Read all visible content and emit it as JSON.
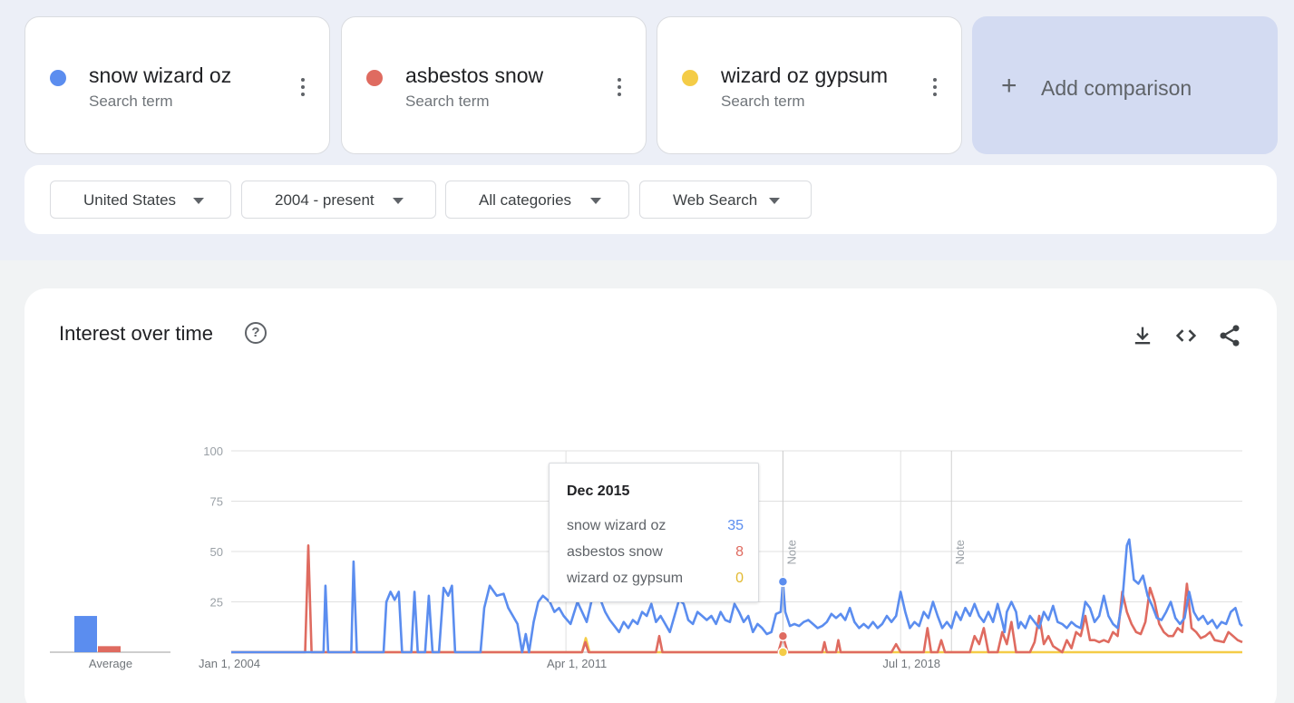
{
  "terms": [
    {
      "name": "snow wizard oz",
      "sub": "Search term",
      "color": "#5b8def"
    },
    {
      "name": "asbestos snow",
      "sub": "Search term",
      "color": "#df6b60"
    },
    {
      "name": "wizard oz gypsum",
      "sub": "Search term",
      "color": "#f4cc47"
    }
  ],
  "add_comparison": {
    "plus": "+",
    "label": "Add comparison"
  },
  "filters": {
    "region": "United States",
    "time": "2004 - present",
    "category": "All categories",
    "property": "Web Search"
  },
  "chart": {
    "title": "Interest over time",
    "help": "?"
  },
  "tooltip": {
    "date": "Dec 2015",
    "rows": [
      {
        "name": "snow wizard oz",
        "value": "35"
      },
      {
        "name": "asbestos snow",
        "value": "8"
      },
      {
        "name": "wizard oz gypsum",
        "value": "0"
      }
    ]
  },
  "chart_data": {
    "type": "line",
    "title": "Interest over time",
    "y_ticks": [
      "100",
      "75",
      "50",
      "25"
    ],
    "ylim": [
      0,
      100
    ],
    "x_tick_labels": [
      "Jan 1, 2004",
      "Apr 1, 2011",
      "Jul 1, 2018"
    ],
    "x_tick_positions": [
      2004.0,
      2011.25,
      2018.5
    ],
    "xlim": [
      2004.0,
      2025.9
    ],
    "annotations": [
      {
        "label": "Note",
        "x": 2015.95
      },
      {
        "label": "Note",
        "x": 2019.6
      }
    ],
    "grid": true,
    "average_label": "Average",
    "average": [
      {
        "series": "snow wizard oz",
        "value": 18
      },
      {
        "series": "asbestos snow",
        "value": 3
      }
    ],
    "series": [
      {
        "name": "snow wizard oz",
        "color": "#5b8def",
        "points": [
          [
            2004.0,
            0
          ],
          [
            2006.0,
            0
          ],
          [
            2006.04,
            33
          ],
          [
            2006.1,
            0
          ],
          [
            2006.6,
            0
          ],
          [
            2006.65,
            45
          ],
          [
            2006.72,
            0
          ],
          [
            2007.3,
            0
          ],
          [
            2007.36,
            25
          ],
          [
            2007.45,
            30
          ],
          [
            2007.54,
            26
          ],
          [
            2007.63,
            30
          ],
          [
            2007.7,
            0
          ],
          [
            2007.9,
            0
          ],
          [
            2007.97,
            30
          ],
          [
            2008.04,
            0
          ],
          [
            2008.2,
            0
          ],
          [
            2008.28,
            28
          ],
          [
            2008.36,
            0
          ],
          [
            2008.5,
            0
          ],
          [
            2008.6,
            32
          ],
          [
            2008.7,
            28
          ],
          [
            2008.78,
            33
          ],
          [
            2008.85,
            0
          ],
          [
            2009.4,
            0
          ],
          [
            2009.48,
            22
          ],
          [
            2009.6,
            33
          ],
          [
            2009.75,
            28
          ],
          [
            2009.9,
            29
          ],
          [
            2010.0,
            22
          ],
          [
            2010.1,
            18
          ],
          [
            2010.2,
            14
          ],
          [
            2010.3,
            0
          ],
          [
            2010.38,
            9
          ],
          [
            2010.45,
            0
          ],
          [
            2010.55,
            15
          ],
          [
            2010.65,
            25
          ],
          [
            2010.75,
            28
          ],
          [
            2010.9,
            25
          ],
          [
            2011.0,
            20
          ],
          [
            2011.1,
            22
          ],
          [
            2011.2,
            18
          ],
          [
            2011.35,
            14
          ],
          [
            2011.5,
            25
          ],
          [
            2011.6,
            20
          ],
          [
            2011.7,
            15
          ],
          [
            2011.8,
            25
          ],
          [
            2011.9,
            34
          ],
          [
            2012.0,
            26
          ],
          [
            2012.1,
            20
          ],
          [
            2012.2,
            16
          ],
          [
            2012.3,
            13
          ],
          [
            2012.4,
            10
          ],
          [
            2012.5,
            15
          ],
          [
            2012.6,
            12
          ],
          [
            2012.7,
            16
          ],
          [
            2012.8,
            14
          ],
          [
            2012.9,
            20
          ],
          [
            2013.0,
            18
          ],
          [
            2013.1,
            24
          ],
          [
            2013.2,
            15
          ],
          [
            2013.3,
            18
          ],
          [
            2013.4,
            14
          ],
          [
            2013.5,
            10
          ],
          [
            2013.6,
            18
          ],
          [
            2013.7,
            26
          ],
          [
            2013.8,
            24
          ],
          [
            2013.9,
            16
          ],
          [
            2014.0,
            14
          ],
          [
            2014.1,
            20
          ],
          [
            2014.2,
            18
          ],
          [
            2014.3,
            16
          ],
          [
            2014.4,
            18
          ],
          [
            2014.5,
            14
          ],
          [
            2014.6,
            20
          ],
          [
            2014.7,
            16
          ],
          [
            2014.8,
            15
          ],
          [
            2014.9,
            24
          ],
          [
            2015.0,
            20
          ],
          [
            2015.1,
            15
          ],
          [
            2015.2,
            18
          ],
          [
            2015.3,
            10
          ],
          [
            2015.4,
            14
          ],
          [
            2015.5,
            12
          ],
          [
            2015.6,
            9
          ],
          [
            2015.7,
            10
          ],
          [
            2015.8,
            19
          ],
          [
            2015.9,
            20
          ],
          [
            2015.95,
            35
          ],
          [
            2016.0,
            20
          ],
          [
            2016.1,
            13
          ],
          [
            2016.2,
            14
          ],
          [
            2016.3,
            13
          ],
          [
            2016.4,
            15
          ],
          [
            2016.5,
            16
          ],
          [
            2016.6,
            14
          ],
          [
            2016.7,
            12
          ],
          [
            2016.8,
            13
          ],
          [
            2016.9,
            15
          ],
          [
            2017.0,
            19
          ],
          [
            2017.1,
            17
          ],
          [
            2017.2,
            19
          ],
          [
            2017.3,
            16
          ],
          [
            2017.4,
            22
          ],
          [
            2017.5,
            15
          ],
          [
            2017.6,
            12
          ],
          [
            2017.7,
            14
          ],
          [
            2017.8,
            12
          ],
          [
            2017.9,
            15
          ],
          [
            2018.0,
            12
          ],
          [
            2018.1,
            14
          ],
          [
            2018.2,
            18
          ],
          [
            2018.3,
            15
          ],
          [
            2018.4,
            18
          ],
          [
            2018.5,
            30
          ],
          [
            2018.6,
            20
          ],
          [
            2018.7,
            12
          ],
          [
            2018.8,
            15
          ],
          [
            2018.9,
            13
          ],
          [
            2019.0,
            20
          ],
          [
            2019.1,
            17
          ],
          [
            2019.2,
            25
          ],
          [
            2019.3,
            18
          ],
          [
            2019.4,
            12
          ],
          [
            2019.5,
            15
          ],
          [
            2019.6,
            12
          ],
          [
            2019.7,
            20
          ],
          [
            2019.8,
            16
          ],
          [
            2019.9,
            22
          ],
          [
            2020.0,
            18
          ],
          [
            2020.1,
            24
          ],
          [
            2020.2,
            18
          ],
          [
            2020.3,
            15
          ],
          [
            2020.4,
            20
          ],
          [
            2020.5,
            15
          ],
          [
            2020.6,
            24
          ],
          [
            2020.7,
            15
          ],
          [
            2020.75,
            10
          ],
          [
            2020.8,
            20
          ],
          [
            2020.9,
            25
          ],
          [
            2021.0,
            20
          ],
          [
            2021.05,
            12
          ],
          [
            2021.1,
            15
          ],
          [
            2021.2,
            12
          ],
          [
            2021.3,
            18
          ],
          [
            2021.4,
            15
          ],
          [
            2021.5,
            12
          ],
          [
            2021.6,
            20
          ],
          [
            2021.7,
            16
          ],
          [
            2021.8,
            23
          ],
          [
            2021.9,
            15
          ],
          [
            2022.0,
            14
          ],
          [
            2022.1,
            12
          ],
          [
            2022.2,
            15
          ],
          [
            2022.3,
            13
          ],
          [
            2022.4,
            12
          ],
          [
            2022.5,
            25
          ],
          [
            2022.6,
            22
          ],
          [
            2022.7,
            15
          ],
          [
            2022.8,
            18
          ],
          [
            2022.9,
            28
          ],
          [
            2023.0,
            18
          ],
          [
            2023.1,
            14
          ],
          [
            2023.2,
            12
          ],
          [
            2023.3,
            25
          ],
          [
            2023.4,
            53
          ],
          [
            2023.45,
            56
          ],
          [
            2023.55,
            36
          ],
          [
            2023.65,
            34
          ],
          [
            2023.75,
            38
          ],
          [
            2023.85,
            28
          ],
          [
            2023.95,
            23
          ],
          [
            2024.05,
            17
          ],
          [
            2024.15,
            16
          ],
          [
            2024.25,
            20
          ],
          [
            2024.35,
            25
          ],
          [
            2024.45,
            17
          ],
          [
            2024.55,
            14
          ],
          [
            2024.65,
            17
          ],
          [
            2024.75,
            30
          ],
          [
            2024.85,
            20
          ],
          [
            2024.95,
            16
          ],
          [
            2025.05,
            18
          ],
          [
            2025.15,
            14
          ],
          [
            2025.25,
            16
          ],
          [
            2025.35,
            12
          ],
          [
            2025.45,
            15
          ],
          [
            2025.55,
            14
          ],
          [
            2025.65,
            20
          ],
          [
            2025.75,
            22
          ],
          [
            2025.85,
            14
          ],
          [
            2025.9,
            13
          ]
        ]
      },
      {
        "name": "asbestos snow",
        "color": "#df6b60",
        "points": [
          [
            2004.0,
            0
          ],
          [
            2005.6,
            0
          ],
          [
            2005.67,
            53
          ],
          [
            2005.74,
            0
          ],
          [
            2011.6,
            0
          ],
          [
            2011.67,
            5
          ],
          [
            2011.74,
            0
          ],
          [
            2013.2,
            0
          ],
          [
            2013.27,
            8
          ],
          [
            2013.34,
            0
          ],
          [
            2015.85,
            0
          ],
          [
            2015.95,
            8
          ],
          [
            2016.05,
            0
          ],
          [
            2016.8,
            0
          ],
          [
            2016.85,
            5
          ],
          [
            2016.9,
            0
          ],
          [
            2017.1,
            0
          ],
          [
            2017.15,
            6
          ],
          [
            2017.2,
            0
          ],
          [
            2018.3,
            0
          ],
          [
            2018.4,
            4
          ],
          [
            2018.5,
            0
          ],
          [
            2019.0,
            0
          ],
          [
            2019.08,
            12
          ],
          [
            2019.16,
            0
          ],
          [
            2019.3,
            0
          ],
          [
            2019.38,
            6
          ],
          [
            2019.46,
            0
          ],
          [
            2020.0,
            0
          ],
          [
            2020.1,
            8
          ],
          [
            2020.2,
            4
          ],
          [
            2020.3,
            12
          ],
          [
            2020.4,
            0
          ],
          [
            2020.6,
            0
          ],
          [
            2020.7,
            10
          ],
          [
            2020.8,
            4
          ],
          [
            2020.9,
            15
          ],
          [
            2021.0,
            0
          ],
          [
            2021.3,
            0
          ],
          [
            2021.4,
            5
          ],
          [
            2021.5,
            18
          ],
          [
            2021.6,
            4
          ],
          [
            2021.7,
            8
          ],
          [
            2021.8,
            3
          ],
          [
            2022.0,
            0
          ],
          [
            2022.1,
            6
          ],
          [
            2022.2,
            2
          ],
          [
            2022.3,
            10
          ],
          [
            2022.4,
            8
          ],
          [
            2022.5,
            18
          ],
          [
            2022.6,
            6
          ],
          [
            2022.7,
            6
          ],
          [
            2022.8,
            5
          ],
          [
            2022.9,
            6
          ],
          [
            2023.0,
            5
          ],
          [
            2023.1,
            10
          ],
          [
            2023.2,
            8
          ],
          [
            2023.3,
            30
          ],
          [
            2023.4,
            20
          ],
          [
            2023.5,
            14
          ],
          [
            2023.6,
            10
          ],
          [
            2023.7,
            9
          ],
          [
            2023.8,
            15
          ],
          [
            2023.9,
            32
          ],
          [
            2024.0,
            25
          ],
          [
            2024.1,
            14
          ],
          [
            2024.2,
            10
          ],
          [
            2024.3,
            8
          ],
          [
            2024.4,
            8
          ],
          [
            2024.5,
            12
          ],
          [
            2024.6,
            10
          ],
          [
            2024.7,
            34
          ],
          [
            2024.8,
            12
          ],
          [
            2024.9,
            10
          ],
          [
            2025.0,
            7
          ],
          [
            2025.1,
            8
          ],
          [
            2025.2,
            10
          ],
          [
            2025.3,
            6
          ],
          [
            2025.5,
            5
          ],
          [
            2025.6,
            10
          ],
          [
            2025.7,
            8
          ],
          [
            2025.8,
            6
          ],
          [
            2025.9,
            5
          ]
        ]
      },
      {
        "name": "wizard oz gypsum",
        "color": "#f4cc47",
        "points": [
          [
            2004.0,
            0
          ],
          [
            2011.6,
            0
          ],
          [
            2011.68,
            7
          ],
          [
            2011.76,
            0
          ],
          [
            2025.9,
            0
          ]
        ]
      }
    ]
  }
}
